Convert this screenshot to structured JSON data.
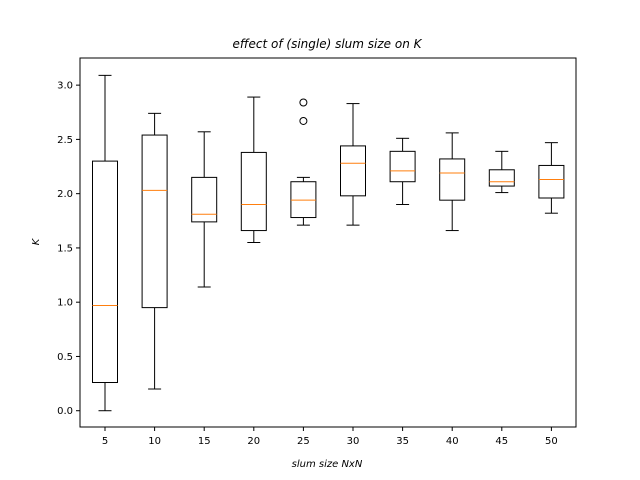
{
  "chart_data": {
    "type": "box",
    "title": "effect of (single) slum size on K",
    "xlabel": "slum size NxN",
    "ylabel": "K",
    "ylim": [
      -0.15,
      3.25
    ],
    "yticks": [
      "0.0",
      "0.5",
      "1.0",
      "1.5",
      "2.0",
      "2.5",
      "3.0"
    ],
    "grid": false,
    "colors": {
      "box": "#000000",
      "median": "#ff7f0e",
      "flier": "#000000"
    },
    "boxes": [
      {
        "label": "5",
        "whisker_low": 0.0,
        "q1": 0.26,
        "median": 0.97,
        "q3": 2.3,
        "whisker_high": 3.09,
        "fliers": []
      },
      {
        "label": "10",
        "whisker_low": 0.2,
        "q1": 0.95,
        "median": 2.03,
        "q3": 2.54,
        "whisker_high": 2.74,
        "fliers": []
      },
      {
        "label": "15",
        "whisker_low": 1.14,
        "q1": 1.74,
        "median": 1.81,
        "q3": 2.15,
        "whisker_high": 2.57,
        "fliers": []
      },
      {
        "label": "20",
        "whisker_low": 1.55,
        "q1": 1.66,
        "median": 1.9,
        "q3": 2.38,
        "whisker_high": 2.89,
        "fliers": []
      },
      {
        "label": "25",
        "whisker_low": 1.71,
        "q1": 1.78,
        "median": 1.94,
        "q3": 2.11,
        "whisker_high": 2.15,
        "fliers": [
          2.67,
          2.84
        ]
      },
      {
        "label": "30",
        "whisker_low": 1.71,
        "q1": 1.98,
        "median": 2.28,
        "q3": 2.44,
        "whisker_high": 2.83,
        "fliers": []
      },
      {
        "label": "35",
        "whisker_low": 1.9,
        "q1": 2.11,
        "median": 2.21,
        "q3": 2.39,
        "whisker_high": 2.51,
        "fliers": []
      },
      {
        "label": "40",
        "whisker_low": 1.66,
        "q1": 1.94,
        "median": 2.19,
        "q3": 2.32,
        "whisker_high": 2.56,
        "fliers": []
      },
      {
        "label": "45",
        "whisker_low": 2.01,
        "q1": 2.07,
        "median": 2.11,
        "q3": 2.22,
        "whisker_high": 2.39,
        "fliers": []
      },
      {
        "label": "50",
        "whisker_low": 1.82,
        "q1": 1.96,
        "median": 2.13,
        "q3": 2.26,
        "whisker_high": 2.47,
        "fliers": []
      }
    ]
  }
}
